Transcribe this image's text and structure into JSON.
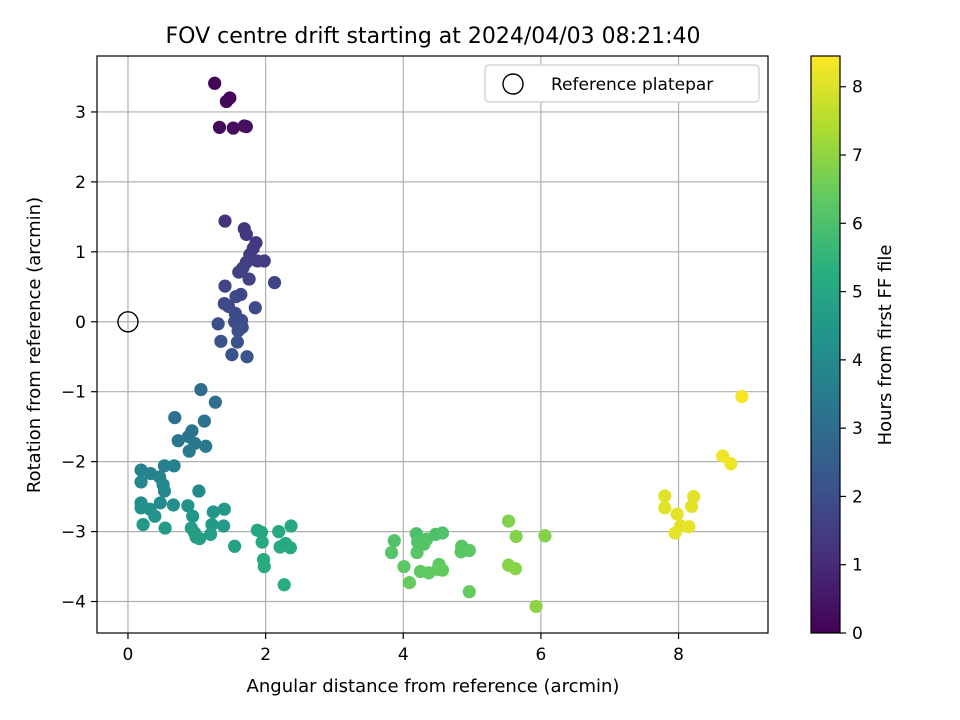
{
  "chart_data": {
    "type": "scatter",
    "title": "FOV centre drift starting at 2024/04/03 08:21:40",
    "xlabel": "Angular distance from reference (arcmin)",
    "ylabel": "Rotation from reference (arcmin)",
    "xlim": [
      -0.45,
      9.3
    ],
    "ylim": [
      -4.45,
      3.8
    ],
    "xticks": [
      0,
      2,
      4,
      6,
      8
    ],
    "xtick_labels": [
      "0",
      "2",
      "4",
      "6",
      "8"
    ],
    "yticks": [
      -4,
      -3,
      -2,
      -1,
      0,
      1,
      2,
      3
    ],
    "ytick_labels": [
      "−4",
      "−3",
      "−2",
      "−1",
      "0",
      "1",
      "2",
      "3"
    ],
    "grid": true,
    "colormap": "viridis",
    "colorbar": {
      "label": "Hours from first FF file",
      "range": [
        0,
        8.45
      ],
      "ticks": [
        0,
        1,
        2,
        3,
        4,
        5,
        6,
        7,
        8
      ],
      "tick_labels": [
        "0",
        "1",
        "2",
        "3",
        "4",
        "5",
        "6",
        "7",
        "8"
      ]
    },
    "legend": {
      "location": "upper right",
      "entries": [
        "Reference platepar"
      ]
    },
    "reference": {
      "x": 0,
      "y": 0
    },
    "points": [
      {
        "x": 1.26,
        "y": 3.41,
        "c": 0.05
      },
      {
        "x": 1.48,
        "y": 3.2,
        "c": 0.1
      },
      {
        "x": 1.43,
        "y": 3.15,
        "c": 0.15
      },
      {
        "x": 1.33,
        "y": 2.78,
        "c": 0.2
      },
      {
        "x": 1.53,
        "y": 2.77,
        "c": 0.25
      },
      {
        "x": 1.69,
        "y": 2.8,
        "c": 0.3
      },
      {
        "x": 1.72,
        "y": 2.79,
        "c": 0.35
      },
      {
        "x": 1.41,
        "y": 1.44,
        "c": 1.2
      },
      {
        "x": 1.69,
        "y": 1.33,
        "c": 1.25
      },
      {
        "x": 1.72,
        "y": 1.25,
        "c": 1.3
      },
      {
        "x": 1.86,
        "y": 1.13,
        "c": 1.35
      },
      {
        "x": 1.82,
        "y": 1.05,
        "c": 1.4
      },
      {
        "x": 1.77,
        "y": 0.96,
        "c": 1.45
      },
      {
        "x": 1.88,
        "y": 0.87,
        "c": 1.5
      },
      {
        "x": 1.98,
        "y": 0.87,
        "c": 1.5
      },
      {
        "x": 1.72,
        "y": 0.85,
        "c": 1.55
      },
      {
        "x": 1.67,
        "y": 0.77,
        "c": 1.6
      },
      {
        "x": 1.61,
        "y": 0.71,
        "c": 1.65
      },
      {
        "x": 1.76,
        "y": 0.61,
        "c": 1.7
      },
      {
        "x": 2.13,
        "y": 0.56,
        "c": 1.7
      },
      {
        "x": 1.41,
        "y": 0.51,
        "c": 1.75
      },
      {
        "x": 1.64,
        "y": 0.39,
        "c": 1.8
      },
      {
        "x": 1.57,
        "y": 0.36,
        "c": 1.8
      },
      {
        "x": 1.4,
        "y": 0.26,
        "c": 1.85
      },
      {
        "x": 1.46,
        "y": 0.22,
        "c": 1.85
      },
      {
        "x": 1.85,
        "y": 0.2,
        "c": 1.9
      },
      {
        "x": 1.56,
        "y": 0.12,
        "c": 1.9
      },
      {
        "x": 1.65,
        "y": 0.02,
        "c": 1.95
      },
      {
        "x": 1.55,
        "y": 0.0,
        "c": 1.95
      },
      {
        "x": 1.31,
        "y": -0.03,
        "c": 2.0
      },
      {
        "x": 1.66,
        "y": -0.08,
        "c": 2.0
      },
      {
        "x": 1.6,
        "y": -0.13,
        "c": 2.05
      },
      {
        "x": 1.35,
        "y": -0.28,
        "c": 2.1
      },
      {
        "x": 1.59,
        "y": -0.29,
        "c": 2.1
      },
      {
        "x": 1.51,
        "y": -0.47,
        "c": 2.15
      },
      {
        "x": 1.73,
        "y": -0.5,
        "c": 2.2
      },
      {
        "x": 1.06,
        "y": -0.97,
        "c": 3.0
      },
      {
        "x": 1.27,
        "y": -1.15,
        "c": 3.05
      },
      {
        "x": 0.68,
        "y": -1.37,
        "c": 3.1
      },
      {
        "x": 1.11,
        "y": -1.42,
        "c": 3.15
      },
      {
        "x": 0.93,
        "y": -1.56,
        "c": 3.2
      },
      {
        "x": 0.88,
        "y": -1.64,
        "c": 3.25
      },
      {
        "x": 0.73,
        "y": -1.7,
        "c": 3.3
      },
      {
        "x": 0.97,
        "y": -1.74,
        "c": 3.35
      },
      {
        "x": 1.13,
        "y": -1.78,
        "c": 3.4
      },
      {
        "x": 0.89,
        "y": -1.85,
        "c": 3.45
      },
      {
        "x": 0.67,
        "y": -2.06,
        "c": 3.6
      },
      {
        "x": 0.53,
        "y": -2.06,
        "c": 3.65
      },
      {
        "x": 0.19,
        "y": -2.12,
        "c": 3.7
      },
      {
        "x": 0.33,
        "y": -2.17,
        "c": 3.75
      },
      {
        "x": 0.46,
        "y": -2.22,
        "c": 3.8
      },
      {
        "x": 0.19,
        "y": -2.29,
        "c": 3.85
      },
      {
        "x": 0.51,
        "y": -2.33,
        "c": 3.9
      },
      {
        "x": 0.53,
        "y": -2.42,
        "c": 3.95
      },
      {
        "x": 1.03,
        "y": -2.42,
        "c": 4.0
      },
      {
        "x": 0.47,
        "y": -2.59,
        "c": 4.05
      },
      {
        "x": 0.19,
        "y": -2.59,
        "c": 4.1
      },
      {
        "x": 0.66,
        "y": -2.62,
        "c": 4.15
      },
      {
        "x": 0.32,
        "y": -2.68,
        "c": 4.2
      },
      {
        "x": 0.19,
        "y": -2.66,
        "c": 4.25
      },
      {
        "x": 0.87,
        "y": -2.63,
        "c": 4.3
      },
      {
        "x": 0.39,
        "y": -2.78,
        "c": 4.35
      },
      {
        "x": 0.94,
        "y": -2.78,
        "c": 4.4
      },
      {
        "x": 1.24,
        "y": -2.72,
        "c": 4.45
      },
      {
        "x": 1.4,
        "y": -2.68,
        "c": 4.5
      },
      {
        "x": 0.22,
        "y": -2.9,
        "c": 4.55
      },
      {
        "x": 1.22,
        "y": -2.9,
        "c": 4.55
      },
      {
        "x": 1.39,
        "y": -2.92,
        "c": 4.6
      },
      {
        "x": 0.54,
        "y": -2.95,
        "c": 4.6
      },
      {
        "x": 0.92,
        "y": -2.95,
        "c": 4.65
      },
      {
        "x": 0.97,
        "y": -3.02,
        "c": 4.7
      },
      {
        "x": 1.2,
        "y": -3.04,
        "c": 4.7
      },
      {
        "x": 0.99,
        "y": -3.08,
        "c": 4.75
      },
      {
        "x": 1.04,
        "y": -3.1,
        "c": 4.75
      },
      {
        "x": 1.55,
        "y": -3.21,
        "c": 4.8
      },
      {
        "x": 1.88,
        "y": -2.98,
        "c": 5.0
      },
      {
        "x": 1.94,
        "y": -3.01,
        "c": 5.0
      },
      {
        "x": 2.37,
        "y": -2.92,
        "c": 5.05
      },
      {
        "x": 2.19,
        "y": -3.0,
        "c": 5.05
      },
      {
        "x": 1.95,
        "y": -3.15,
        "c": 5.1
      },
      {
        "x": 2.29,
        "y": -3.17,
        "c": 5.1
      },
      {
        "x": 2.21,
        "y": -3.22,
        "c": 5.15
      },
      {
        "x": 2.36,
        "y": -3.23,
        "c": 5.15
      },
      {
        "x": 1.97,
        "y": -3.4,
        "c": 5.2
      },
      {
        "x": 1.98,
        "y": -3.5,
        "c": 5.2
      },
      {
        "x": 2.27,
        "y": -3.76,
        "c": 5.25
      },
      {
        "x": 4.19,
        "y": -3.03,
        "c": 6.0
      },
      {
        "x": 4.47,
        "y": -3.04,
        "c": 6.0
      },
      {
        "x": 4.57,
        "y": -3.02,
        "c": 6.05
      },
      {
        "x": 3.87,
        "y": -3.13,
        "c": 6.05
      },
      {
        "x": 4.21,
        "y": -3.15,
        "c": 6.1
      },
      {
        "x": 4.34,
        "y": -3.11,
        "c": 6.1
      },
      {
        "x": 4.3,
        "y": -3.18,
        "c": 6.15
      },
      {
        "x": 3.83,
        "y": -3.3,
        "c": 6.15
      },
      {
        "x": 4.2,
        "y": -3.3,
        "c": 6.2
      },
      {
        "x": 4.85,
        "y": -3.21,
        "c": 6.2
      },
      {
        "x": 4.84,
        "y": -3.29,
        "c": 6.25
      },
      {
        "x": 4.96,
        "y": -3.27,
        "c": 6.25
      },
      {
        "x": 4.01,
        "y": -3.5,
        "c": 6.3
      },
      {
        "x": 4.52,
        "y": -3.47,
        "c": 6.3
      },
      {
        "x": 4.25,
        "y": -3.57,
        "c": 6.35
      },
      {
        "x": 4.37,
        "y": -3.59,
        "c": 6.35
      },
      {
        "x": 4.57,
        "y": -3.55,
        "c": 6.4
      },
      {
        "x": 4.5,
        "y": -3.54,
        "c": 6.4
      },
      {
        "x": 4.09,
        "y": -3.73,
        "c": 6.45
      },
      {
        "x": 4.96,
        "y": -3.86,
        "c": 6.45
      },
      {
        "x": 5.53,
        "y": -2.85,
        "c": 6.8
      },
      {
        "x": 5.64,
        "y": -3.07,
        "c": 6.85
      },
      {
        "x": 6.06,
        "y": -3.06,
        "c": 6.85
      },
      {
        "x": 5.53,
        "y": -3.48,
        "c": 6.9
      },
      {
        "x": 5.63,
        "y": -3.53,
        "c": 6.9
      },
      {
        "x": 5.93,
        "y": -4.07,
        "c": 6.95
      },
      {
        "x": 8.92,
        "y": -1.07,
        "c": 8.35
      },
      {
        "x": 8.64,
        "y": -1.92,
        "c": 8.25
      },
      {
        "x": 8.76,
        "y": -2.03,
        "c": 8.25
      },
      {
        "x": 7.8,
        "y": -2.49,
        "c": 8.05
      },
      {
        "x": 8.22,
        "y": -2.5,
        "c": 8.1
      },
      {
        "x": 8.19,
        "y": -2.64,
        "c": 8.1
      },
      {
        "x": 7.8,
        "y": -2.66,
        "c": 8.05
      },
      {
        "x": 7.98,
        "y": -2.75,
        "c": 8.1
      },
      {
        "x": 8.03,
        "y": -2.92,
        "c": 8.1
      },
      {
        "x": 8.15,
        "y": -2.93,
        "c": 8.15
      },
      {
        "x": 7.95,
        "y": -3.02,
        "c": 8.15
      }
    ]
  }
}
